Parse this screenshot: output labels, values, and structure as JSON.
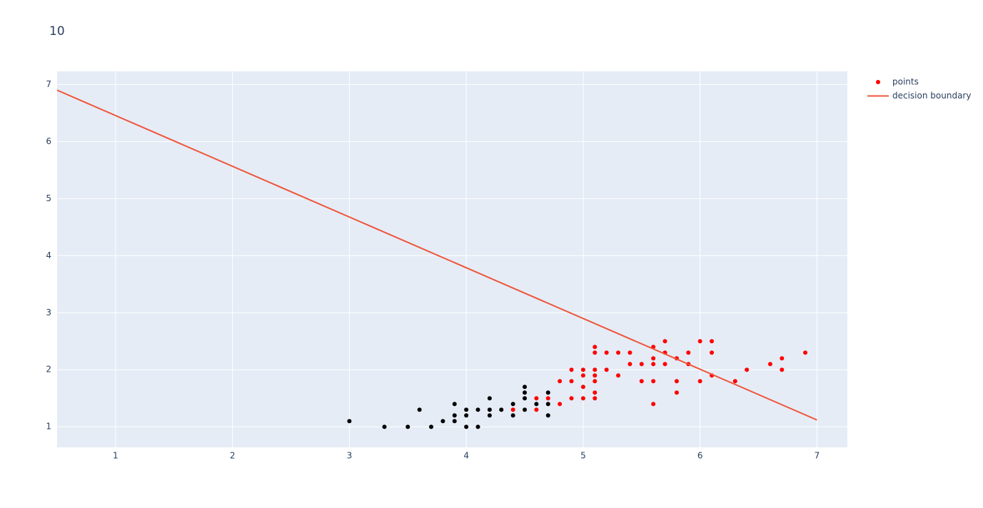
{
  "chart_data": {
    "type": "scatter",
    "title": "10",
    "xlim": [
      0.5,
      7.26
    ],
    "ylim": [
      0.64,
      7.23
    ],
    "xticks": [
      1,
      2,
      3,
      4,
      5,
      6,
      7
    ],
    "yticks": [
      1,
      2,
      3,
      4,
      5,
      6,
      7
    ],
    "grid": true,
    "series": [
      {
        "name": "points",
        "type": "scatter",
        "color": "#ff0000",
        "x": [
          3.0,
          3.3,
          3.5,
          3.6,
          3.7,
          3.8,
          3.9,
          3.9,
          3.9,
          4.0,
          4.0,
          4.0,
          4.1,
          4.1,
          4.2,
          4.2,
          4.2,
          4.3,
          4.4,
          4.4,
          4.5,
          4.5,
          4.5,
          4.5,
          4.6,
          4.7,
          4.7,
          4.7,
          4.4,
          4.6,
          4.6,
          4.7,
          4.8,
          4.8,
          4.9,
          4.9,
          4.9,
          5.0,
          5.0,
          5.0,
          5.0,
          5.1,
          5.1,
          5.1,
          5.1,
          5.1,
          5.1,
          5.1,
          5.2,
          5.2,
          5.3,
          5.3,
          5.4,
          5.4,
          5.5,
          5.5,
          5.6,
          5.6,
          5.6,
          5.6,
          5.6,
          5.7,
          5.7,
          5.7,
          5.8,
          5.8,
          5.8,
          5.9,
          5.9,
          6.0,
          6.0,
          6.1,
          6.1,
          6.1,
          6.3,
          6.4,
          6.6,
          6.7,
          6.7,
          6.9
        ],
        "values": [
          1.1,
          1.0,
          1.0,
          1.3,
          1.0,
          1.1,
          1.4,
          1.2,
          1.1,
          1.3,
          1.2,
          1.0,
          1.3,
          1.0,
          1.5,
          1.3,
          1.2,
          1.3,
          1.4,
          1.2,
          1.7,
          1.6,
          1.5,
          1.3,
          1.4,
          1.6,
          1.4,
          1.2,
          1.3,
          1.5,
          1.3,
          1.5,
          1.8,
          1.4,
          2.0,
          1.8,
          1.5,
          2.0,
          1.9,
          1.7,
          1.5,
          2.4,
          2.3,
          2.0,
          1.9,
          1.8,
          1.6,
          1.5,
          2.3,
          2.0,
          2.3,
          1.9,
          2.3,
          2.1,
          2.1,
          1.8,
          2.4,
          2.2,
          2.1,
          1.8,
          1.4,
          2.5,
          2.3,
          2.1,
          2.2,
          1.8,
          1.6,
          2.3,
          2.1,
          2.5,
          1.8,
          2.5,
          2.3,
          1.9,
          1.8,
          2.0,
          2.1,
          2.2,
          2.0,
          2.3
        ],
        "colors": [
          "#000000",
          "#000000",
          "#000000",
          "#000000",
          "#000000",
          "#000000",
          "#000000",
          "#000000",
          "#000000",
          "#000000",
          "#000000",
          "#000000",
          "#000000",
          "#000000",
          "#000000",
          "#000000",
          "#000000",
          "#000000",
          "#000000",
          "#000000",
          "#000000",
          "#000000",
          "#000000",
          "#000000",
          "#000000",
          "#000000",
          "#000000",
          "#000000",
          "#ff0000",
          "#ff0000",
          "#ff0000",
          "#ff0000",
          "#ff0000",
          "#ff0000",
          "#ff0000",
          "#ff0000",
          "#ff0000",
          "#ff0000",
          "#ff0000",
          "#ff0000",
          "#ff0000",
          "#ff0000",
          "#ff0000",
          "#ff0000",
          "#ff0000",
          "#ff0000",
          "#ff0000",
          "#ff0000",
          "#ff0000",
          "#ff0000",
          "#ff0000",
          "#ff0000",
          "#ff0000",
          "#ff0000",
          "#ff0000",
          "#ff0000",
          "#ff0000",
          "#ff0000",
          "#ff0000",
          "#ff0000",
          "#ff0000",
          "#ff0000",
          "#ff0000",
          "#ff0000",
          "#ff0000",
          "#ff0000",
          "#ff0000",
          "#ff0000",
          "#ff0000",
          "#ff0000",
          "#ff0000",
          "#ff0000",
          "#ff0000",
          "#ff0000",
          "#ff0000",
          "#ff0000",
          "#ff0000",
          "#ff0000",
          "#ff0000",
          "#ff0000"
        ]
      },
      {
        "name": "decision boundary",
        "type": "line",
        "color": "#ef553b",
        "x": [
          0.5,
          7
        ],
        "values": [
          6.9,
          1.12
        ]
      }
    ]
  }
}
